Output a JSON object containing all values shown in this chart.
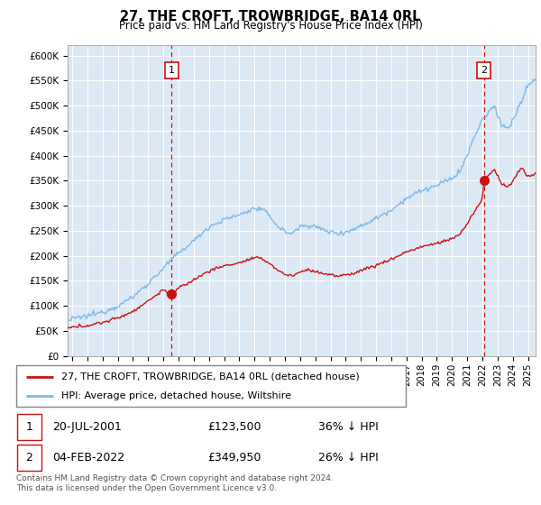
{
  "title": "27, THE CROFT, TROWBRIDGE, BA14 0RL",
  "subtitle": "Price paid vs. HM Land Registry's House Price Index (HPI)",
  "ylim": [
    0,
    620000
  ],
  "xlim_start": 1994.7,
  "xlim_end": 2025.5,
  "background_color": "#dce9f5",
  "plot_bg": "#dce9f5",
  "grid_color": "#ffffff",
  "hpi_color": "#7db8e8",
  "price_color": "#cc1111",
  "annotation_box_color": "#cc1111",
  "dashed_line_color": "#cc1111",
  "t1_year": 2001.55,
  "t1_price": 123500,
  "t2_year": 2022.09,
  "t2_price": 349950,
  "legend_line1": "27, THE CROFT, TROWBRIDGE, BA14 0RL (detached house)",
  "legend_line2": "HPI: Average price, detached house, Wiltshire",
  "table_date1": "20-JUL-2001",
  "table_price1": "£123,500",
  "table_pct1": "36% ↓ HPI",
  "table_date2": "04-FEB-2022",
  "table_price2": "£349,950",
  "table_pct2": "26% ↓ HPI",
  "footer": "Contains HM Land Registry data © Crown copyright and database right 2024.\nThis data is licensed under the Open Government Licence v3.0."
}
